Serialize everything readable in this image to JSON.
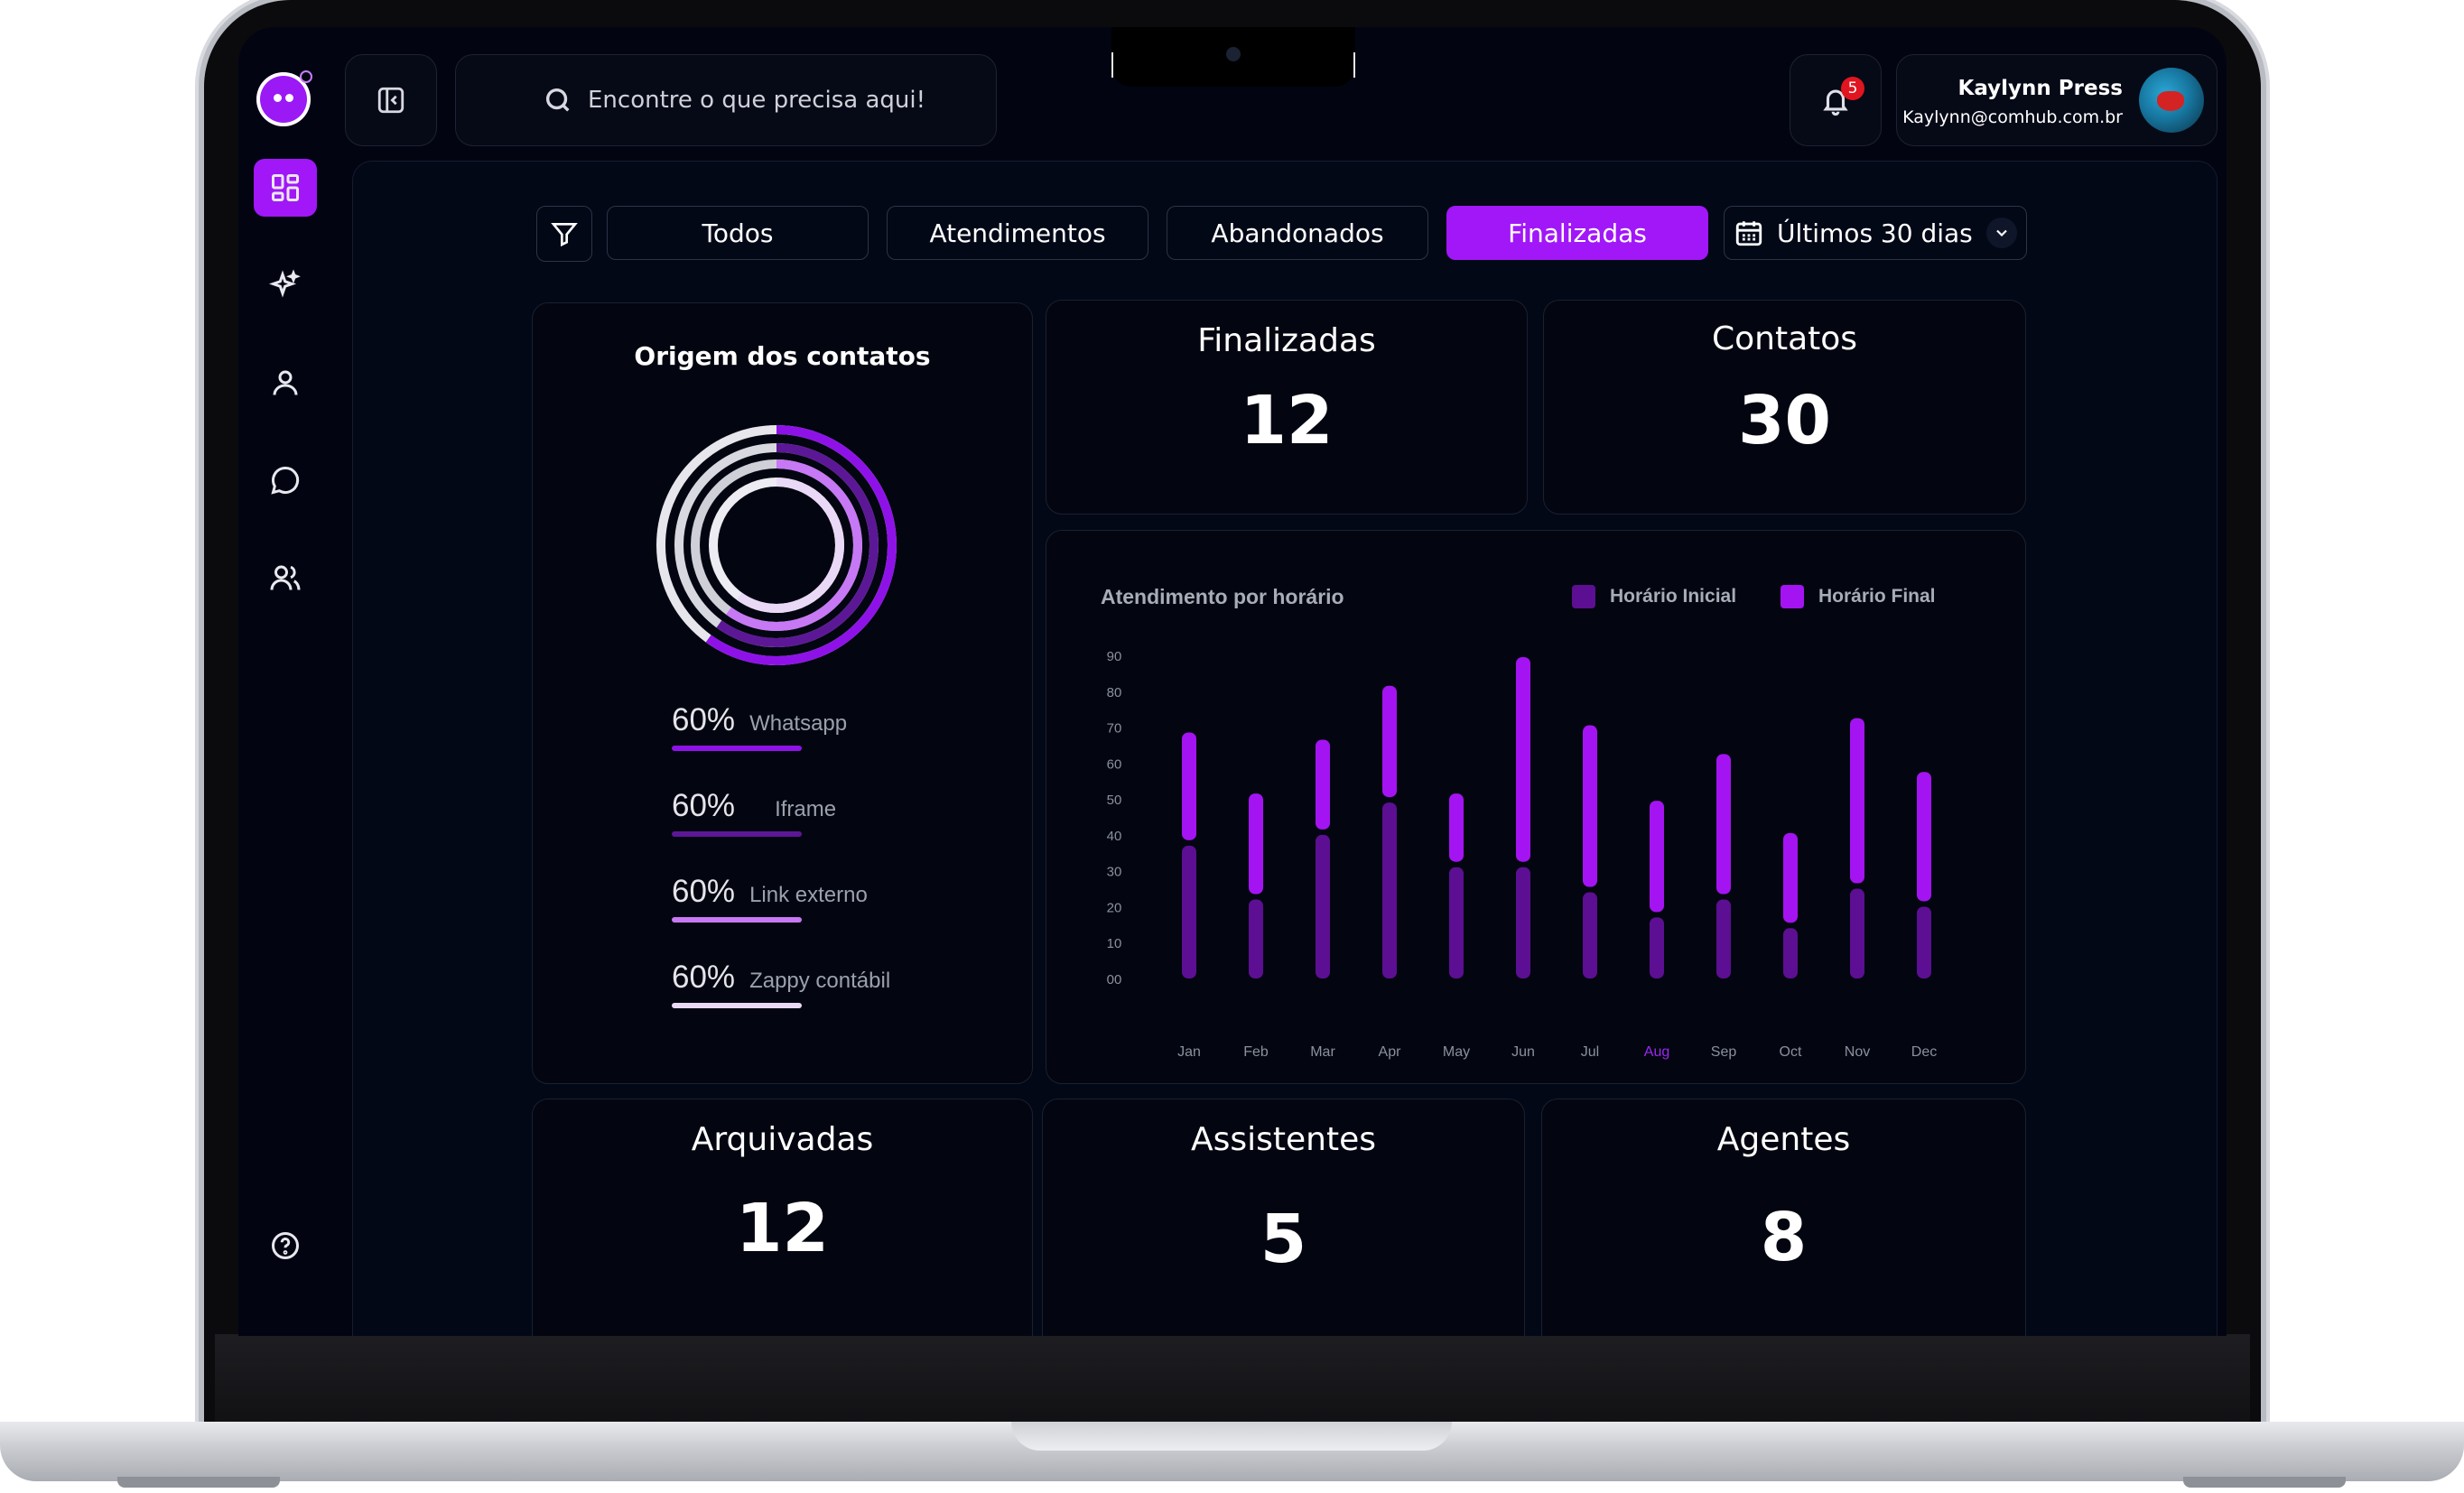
{
  "search": {
    "placeholder": "Encontre o que precisa aqui!"
  },
  "notifications": {
    "count": "5"
  },
  "user": {
    "name": "Kaylynn Press",
    "email": "Kaylynn@comhub.com.br"
  },
  "filters": {
    "chips": [
      "Todos",
      "Atendimentos",
      "Abandonados",
      "Finalizadas"
    ],
    "active": "Finalizadas",
    "date_range": "Últimos 30 dias"
  },
  "stats": {
    "finalizadas": {
      "title": "Finalizadas",
      "value": "12"
    },
    "contatos": {
      "title": "Contatos",
      "value": "30"
    },
    "arquivadas": {
      "title": "Arquivadas",
      "value": "12"
    },
    "assistentes": {
      "title": "Assistentes",
      "value": "5"
    },
    "agentes": {
      "title": "Agentes",
      "value": "8"
    }
  },
  "origem": {
    "title": "Origem dos contatos",
    "items": [
      {
        "pct": "60%",
        "name": "Whatsapp",
        "value": 60,
        "color": "#8e12e8"
      },
      {
        "pct": "60%",
        "name": "Iframe",
        "value": 60,
        "color": "#5c1796"
      },
      {
        "pct": "60%",
        "name": "Link externo",
        "value": 60,
        "color": "#c778f5"
      },
      {
        "pct": "60%",
        "name": "Zappy contábil",
        "value": 60,
        "color": "#ead9f6"
      }
    ]
  },
  "chart_data": {
    "type": "bar",
    "title": "Atendimento por horário",
    "categories": [
      "Jan",
      "Feb",
      "Mar",
      "Apr",
      "May",
      "Jun",
      "Jul",
      "Aug",
      "Sep",
      "Oct",
      "Nov",
      "Dec"
    ],
    "highlighted_category": "Aug",
    "series": [
      {
        "name": "Horário Inicial",
        "color": "#5c0f92",
        "values": [
          37,
          22,
          40,
          49,
          31,
          31,
          24,
          17,
          22,
          14,
          25,
          20
        ]
      },
      {
        "name": "Horário Final",
        "color": "#a414f2",
        "values": [
          30,
          28,
          25,
          31,
          19,
          57,
          45,
          31,
          39,
          25,
          46,
          36
        ]
      }
    ],
    "yticks": [
      "00",
      "10",
      "20",
      "30",
      "40",
      "50",
      "60",
      "70",
      "80",
      "90"
    ],
    "ylim": [
      0,
      90
    ],
    "xlabel": "",
    "ylabel": ""
  }
}
